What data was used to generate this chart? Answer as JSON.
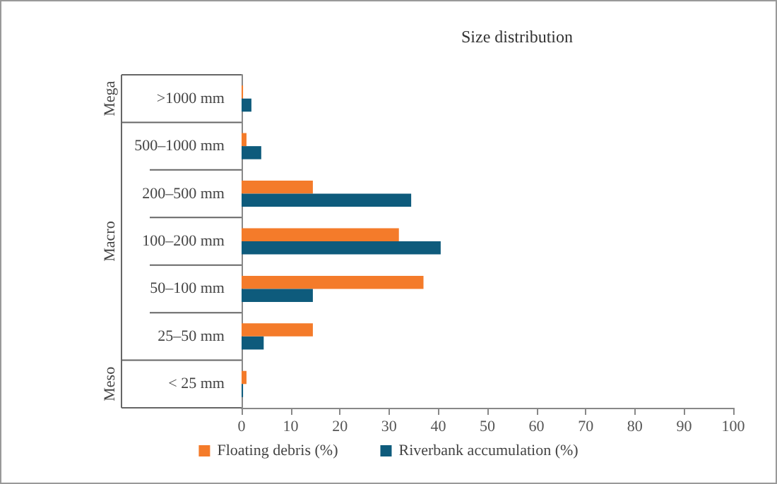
{
  "chart_data": {
    "type": "bar",
    "orientation": "horizontal",
    "title": "Size distribution",
    "categories": [
      ">1000 mm",
      "500–1000 mm",
      "200–500 mm",
      "100–200 mm",
      "50–100 mm",
      "25–50 mm",
      "< 25 mm"
    ],
    "series": [
      {
        "name": "Floating debris (%)",
        "color": "#f47b2a",
        "values": [
          0.3,
          1,
          14.5,
          32,
          37,
          14.5,
          1
        ]
      },
      {
        "name": "Riverbank accumulation (%)",
        "color": "#0e5b7c",
        "values": [
          2,
          4,
          34.5,
          40.5,
          14.5,
          4.5,
          0.3
        ]
      }
    ],
    "xlim": [
      0,
      100
    ],
    "xticks": [
      0,
      10,
      20,
      30,
      40,
      50,
      60,
      70,
      80,
      90,
      100
    ],
    "annotations": [
      "Mega",
      "Macro",
      "Meso"
    ],
    "grid": false,
    "legend": "bottom"
  }
}
